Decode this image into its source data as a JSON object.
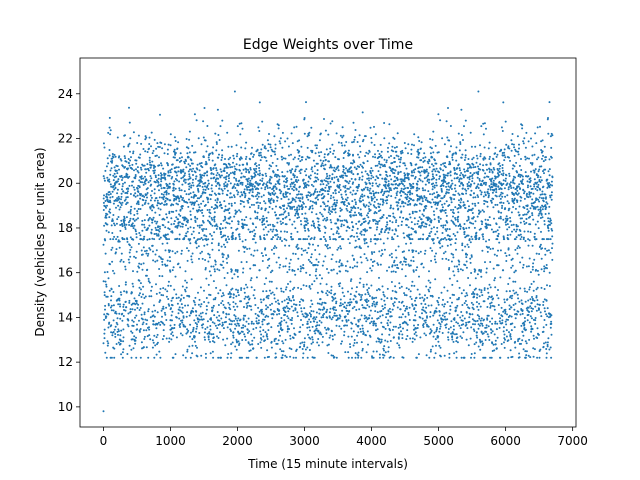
{
  "chart_data": {
    "type": "scatter",
    "title": "Edge Weights over Time",
    "xlabel": "Time (15 minute intervals)",
    "ylabel": "Density (vehicles per unit area)",
    "xlim": [
      -350,
      7050
    ],
    "ylim": [
      9.1,
      25.6
    ],
    "xticks": [
      0,
      1000,
      2000,
      3000,
      4000,
      5000,
      6000,
      7000
    ],
    "yticks": [
      10,
      12,
      14,
      16,
      18,
      20,
      22,
      24
    ],
    "color": "#1f77b4",
    "grid": false,
    "n_points_approx": 6700,
    "x_range": [
      0,
      6700
    ],
    "outlier": {
      "x": 0,
      "y": 9.8
    },
    "upper_cluster": {
      "center": 19.8,
      "spread": 1.2,
      "min": 17.5,
      "max": 24.9
    },
    "lower_cluster": {
      "center": 14.0,
      "spread": 1.0,
      "min": 12.2,
      "max": 17.0
    }
  }
}
